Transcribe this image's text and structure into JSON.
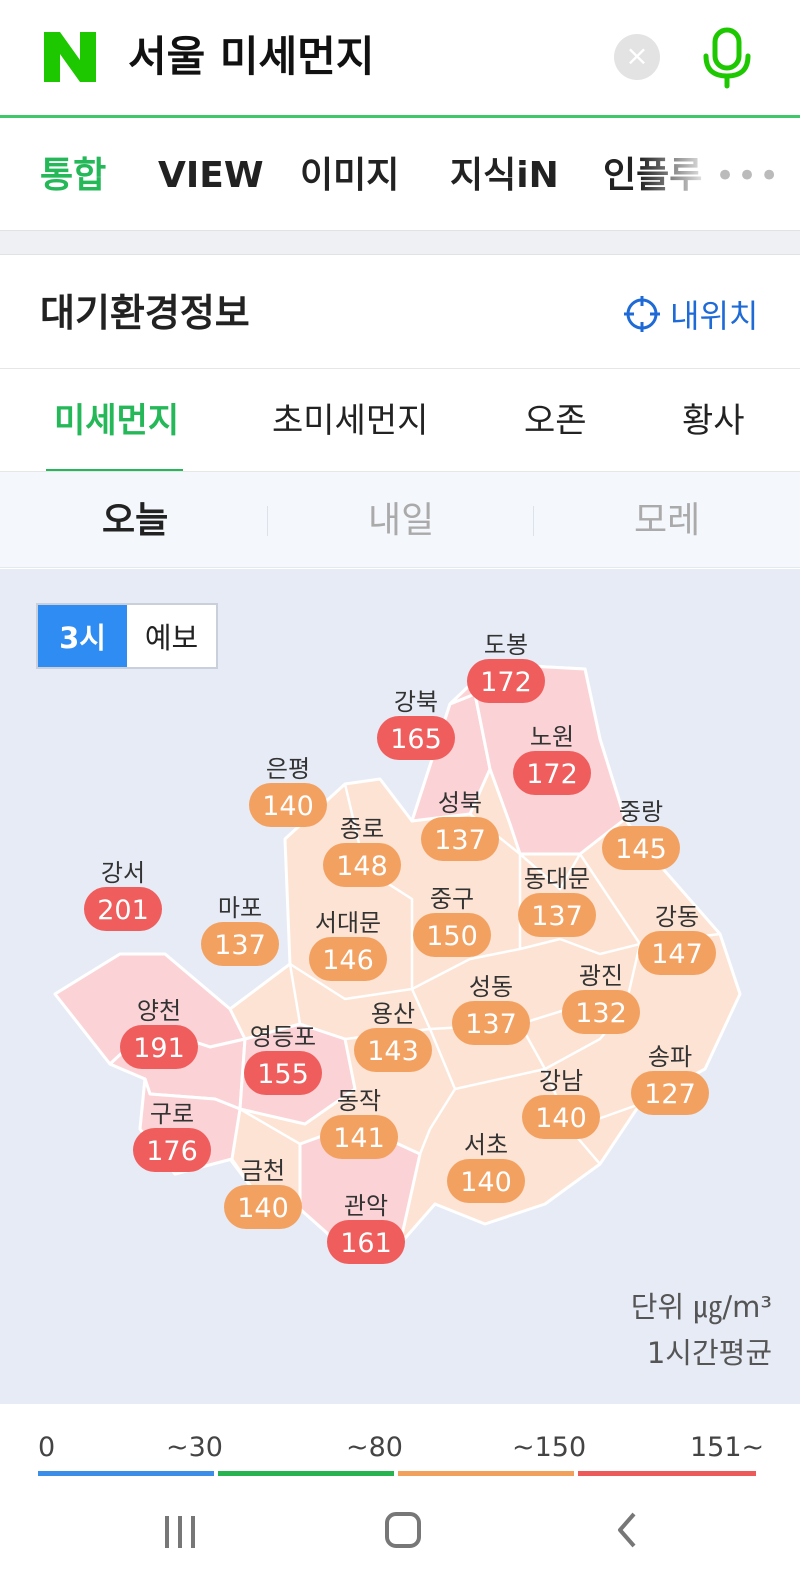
{
  "search": {
    "query": "서울 미세먼지",
    "clear_label": "×"
  },
  "search_tabs": [
    "통합",
    "VIEW",
    "이미지",
    "지식iN",
    "인플루"
  ],
  "search_more": "•••",
  "card": {
    "title": "대기환경정보",
    "my_location": "내위치"
  },
  "pollutant_tabs": [
    "미세먼지",
    "초미세먼지",
    "오존",
    "황사"
  ],
  "day_tabs": [
    "오늘",
    "내일",
    "모레"
  ],
  "toggle": [
    "3시",
    "예보"
  ],
  "districts": [
    {
      "name": "도봉",
      "value": 172,
      "level": "very_bad"
    },
    {
      "name": "강북",
      "value": 165,
      "level": "very_bad"
    },
    {
      "name": "노원",
      "value": 172,
      "level": "very_bad"
    },
    {
      "name": "은평",
      "value": 140,
      "level": "bad"
    },
    {
      "name": "성북",
      "value": 137,
      "level": "bad"
    },
    {
      "name": "종로",
      "value": 148,
      "level": "bad"
    },
    {
      "name": "중랑",
      "value": 145,
      "level": "bad"
    },
    {
      "name": "강서",
      "value": 201,
      "level": "very_bad"
    },
    {
      "name": "동대문",
      "value": 137,
      "level": "bad"
    },
    {
      "name": "마포",
      "value": 137,
      "level": "bad"
    },
    {
      "name": "중구",
      "value": 150,
      "level": "bad"
    },
    {
      "name": "서대문",
      "value": 146,
      "level": "bad"
    },
    {
      "name": "강동",
      "value": 147,
      "level": "bad"
    },
    {
      "name": "광진",
      "value": 132,
      "level": "bad"
    },
    {
      "name": "양천",
      "value": 191,
      "level": "very_bad"
    },
    {
      "name": "성동",
      "value": 137,
      "level": "bad"
    },
    {
      "name": "용산",
      "value": 143,
      "level": "bad"
    },
    {
      "name": "영등포",
      "value": 155,
      "level": "very_bad"
    },
    {
      "name": "송파",
      "value": 127,
      "level": "bad"
    },
    {
      "name": "강남",
      "value": 140,
      "level": "bad"
    },
    {
      "name": "동작",
      "value": 141,
      "level": "bad"
    },
    {
      "name": "구로",
      "value": 176,
      "level": "very_bad"
    },
    {
      "name": "서초",
      "value": 140,
      "level": "bad"
    },
    {
      "name": "금천",
      "value": 140,
      "level": "bad"
    },
    {
      "name": "관악",
      "value": 161,
      "level": "very_bad"
    }
  ],
  "unit": {
    "line1": "단위 ㎍/m³",
    "line2": "1시간평균"
  },
  "legend": {
    "labels": [
      "0",
      "~30",
      "~80",
      "~150",
      "151~"
    ],
    "colors": [
      "#3b8ee8",
      "#27b34f",
      "#f2a15c",
      "#ec5a5a"
    ]
  },
  "colors": {
    "accent": "#25b858",
    "link_blue": "#1e6ad6",
    "toggle_on": "#2f8cf2",
    "badge_bad": "#f3a161",
    "badge_very_bad": "#ef5d5d",
    "fill_bad": "#fde3d3",
    "fill_very_bad": "#fbd3d6"
  }
}
